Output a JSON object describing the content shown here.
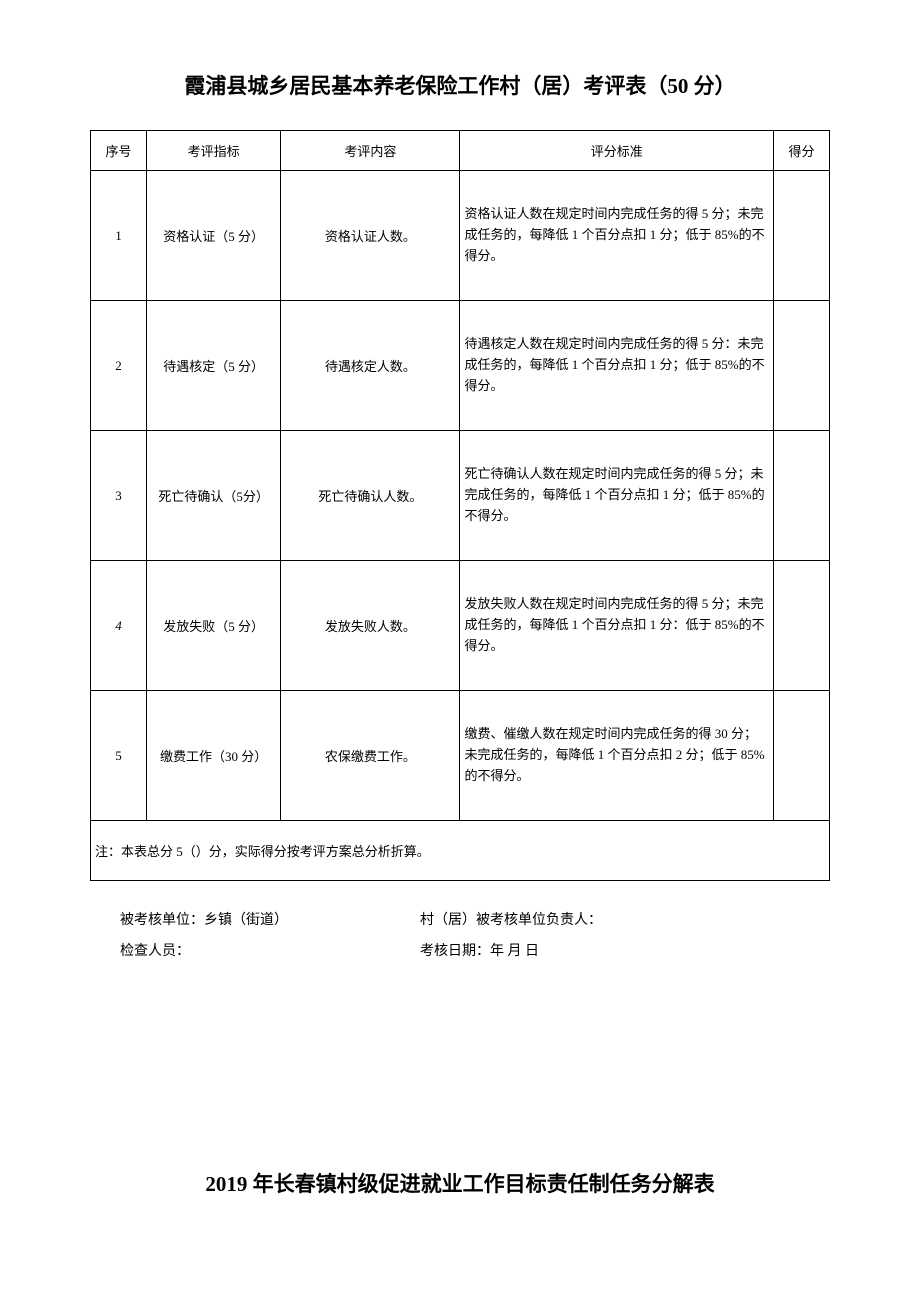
{
  "title": "霞浦县城乡居民基本养老保险工作村（居）考评表（50 分）",
  "table": {
    "headers": {
      "seq": "序号",
      "indicator": "考评指标",
      "content": "考评内容",
      "standard": "评分标准",
      "score": "得分"
    },
    "rows": [
      {
        "seq": "1",
        "indicator": "资格认证（5 分）",
        "content": "资格认证人数。",
        "standard": "资格认证人数在规定时间内完成任务的得 5 分；未完成任务的，每降低 1 个百分点扣 1 分；低于 85%的不得分。",
        "score": ""
      },
      {
        "seq": "2",
        "indicator": "待遇核定（5 分）",
        "content": "待遇核定人数。",
        "standard": "待遇核定人数在规定时间内完成任务的得 5 分：未完成任务的，每降低 1 个百分点扣 1 分；低于 85%的不得分。",
        "score": ""
      },
      {
        "seq": "3",
        "indicator": "死亡待确认（5分）",
        "content": "死亡待确认人数。",
        "standard": "死亡待确认人数在规定时间内完成任务的得 5 分；未完成任务的，每降低 1 个百分点扣 1 分；低于 85%的不得分。",
        "score": ""
      },
      {
        "seq": "4",
        "indicator": "发放失败（5 分）",
        "content": "发放失败人数。",
        "standard": "发放失败人数在规定时间内完成任务的得 5 分；未完成任务的，每降低 1 个百分点扣 1 分：低于 85%的不得分。",
        "score": ""
      },
      {
        "seq": "5",
        "indicator": "缴费工作（30 分）",
        "content": "农保缴费工作。",
        "standard": "缴费、催缴人数在规定时间内完成任务的得 30 分；未完成任务的，每降低 1 个百分点扣 2 分；低于 85%的不得分。",
        "score": ""
      }
    ],
    "note": "注：本表总分 5（）分，实际得分按考评方案总分析折算。"
  },
  "footer": {
    "unit_label": "被考核单位：乡镇（街道）",
    "responsible_label": "村（居）被考核单位负责人：",
    "inspector_label": "检查人员：",
    "date_label": "考核日期：年 月 日"
  },
  "subtitle": "2019 年长春镇村级促进就业工作目标责任制任务分解表"
}
